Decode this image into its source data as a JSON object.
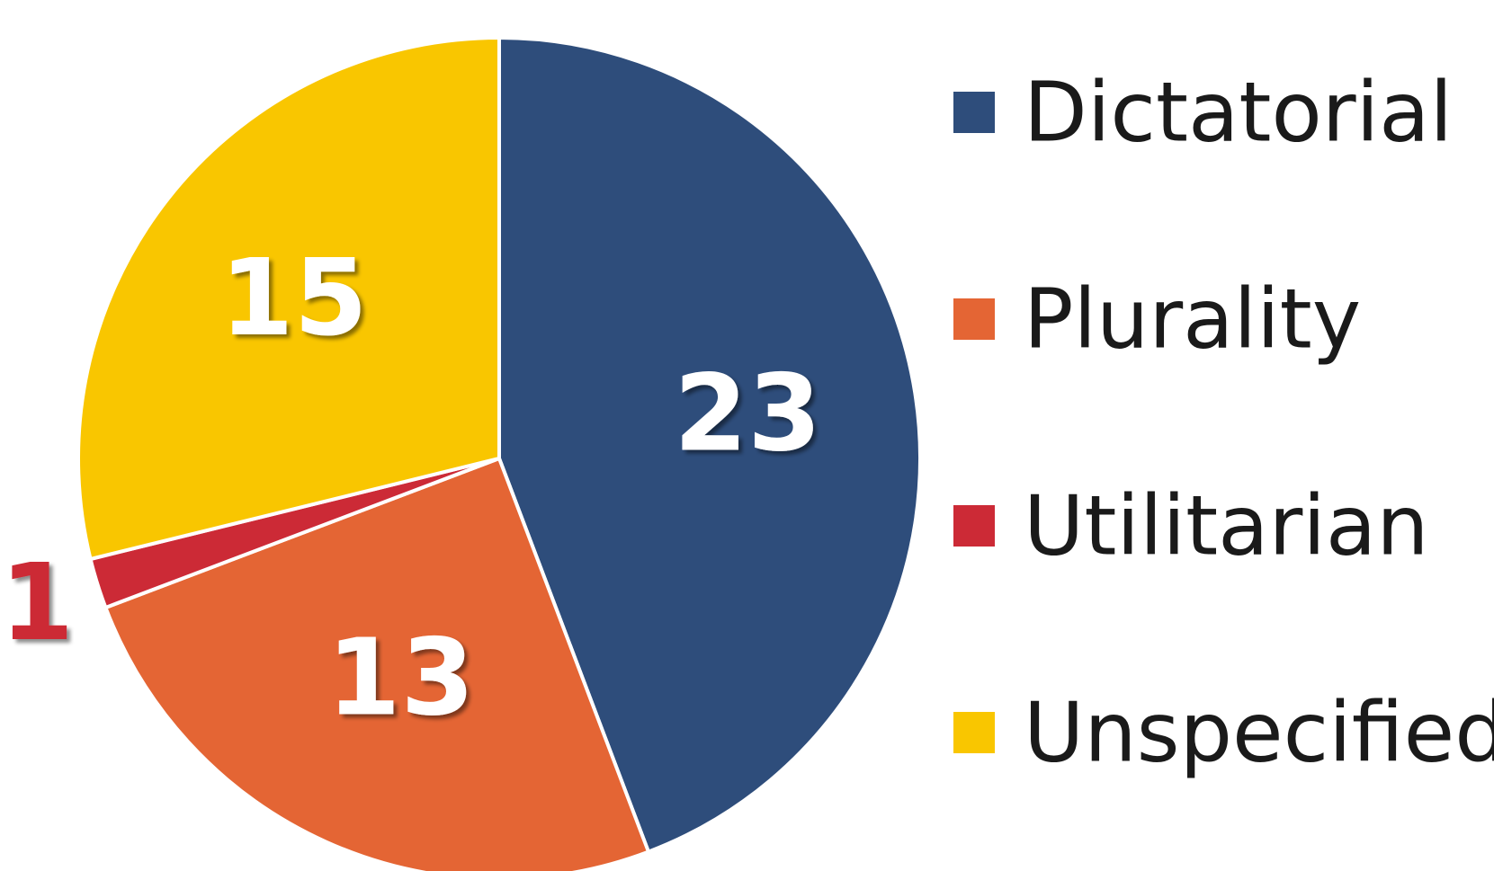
{
  "chart_data": {
    "type": "pie",
    "categories": [
      "Dictatorial",
      "Plurality",
      "Utilitarian",
      "Unspecified"
    ],
    "values": [
      23,
      13,
      1,
      15
    ],
    "colors": [
      "#2e4d7b",
      "#e46534",
      "#cc2a36",
      "#f9c600"
    ],
    "label_colors": [
      "#ffffff",
      "#ffffff",
      "#cc2a36",
      "#ffffff"
    ],
    "start_angle_deg": 0,
    "direction": "clockwise",
    "legend_position": "right",
    "title": "",
    "data_labels": true
  }
}
